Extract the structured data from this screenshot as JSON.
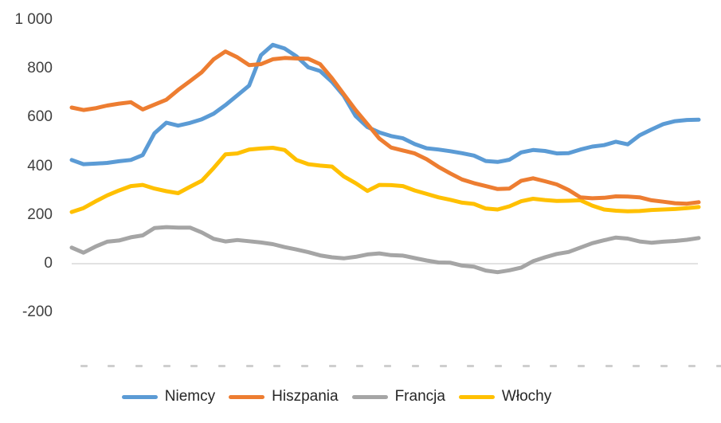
{
  "chart_data": {
    "type": "line",
    "title": "",
    "legend_position": "bottom",
    "grid": "zero-line-only",
    "ylim": [
      -200,
      1000
    ],
    "y_ticks": [
      {
        "label": "1 000",
        "value": 1000
      },
      {
        "label": "800",
        "value": 800
      },
      {
        "label": "600",
        "value": 600
      },
      {
        "label": "400",
        "value": 400
      },
      {
        "label": "200",
        "value": 200
      },
      {
        "label": "0",
        "value": 0
      },
      {
        "label": "-200",
        "value": -200
      }
    ],
    "x_tick_count": 24,
    "x_tick_labels_legible": false,
    "zero_gridline_color": "#d9d9d9",
    "series": [
      {
        "name": "Niemcy",
        "color": "#5B9BD5",
        "values": [
          425,
          408,
          410,
          413,
          420,
          425,
          445,
          535,
          578,
          566,
          577,
          592,
          615,
          650,
          690,
          730,
          855,
          897,
          882,
          850,
          805,
          790,
          745,
          688,
          605,
          560,
          538,
          523,
          514,
          490,
          473,
          468,
          461,
          453,
          443,
          421,
          417,
          426,
          456,
          466,
          462,
          452,
          453,
          468,
          480,
          486,
          500,
          489,
          526,
          550,
          572,
          584,
          589,
          590
        ]
      },
      {
        "name": "Hiszpania",
        "color": "#ED7D31",
        "values": [
          640,
          630,
          637,
          648,
          656,
          662,
          632,
          652,
          672,
          712,
          748,
          785,
          838,
          870,
          846,
          814,
          818,
          838,
          843,
          841,
          840,
          818,
          760,
          695,
          630,
          572,
          513,
          476,
          464,
          452,
          428,
          397,
          370,
          345,
          330,
          318,
          306,
          308,
          340,
          350,
          338,
          325,
          302,
          272,
          268,
          270,
          276,
          275,
          272,
          260,
          254,
          248,
          246,
          252
        ]
      },
      {
        "name": "Francja",
        "color": "#A5A5A5",
        "values": [
          66,
          45,
          70,
          90,
          95,
          108,
          116,
          146,
          150,
          148,
          148,
          128,
          102,
          91,
          97,
          92,
          87,
          80,
          68,
          58,
          47,
          34,
          26,
          22,
          28,
          38,
          42,
          35,
          33,
          23,
          13,
          5,
          4,
          -8,
          -12,
          -28,
          -35,
          -27,
          -16,
          10,
          26,
          40,
          48,
          66,
          84,
          96,
          107,
          103,
          91,
          86,
          90,
          93,
          98,
          105
        ]
      },
      {
        "name": "Włochy",
        "color": "#FFC000",
        "values": [
          212,
          228,
          255,
          280,
          300,
          318,
          323,
          308,
          297,
          289,
          315,
          340,
          392,
          448,
          452,
          468,
          472,
          475,
          466,
          425,
          408,
          402,
          398,
          358,
          330,
          298,
          323,
          322,
          318,
          300,
          286,
          272,
          262,
          250,
          245,
          226,
          222,
          235,
          256,
          266,
          261,
          257,
          258,
          260,
          238,
          222,
          217,
          215,
          216,
          220,
          222,
          224,
          228,
          232
        ]
      }
    ]
  }
}
